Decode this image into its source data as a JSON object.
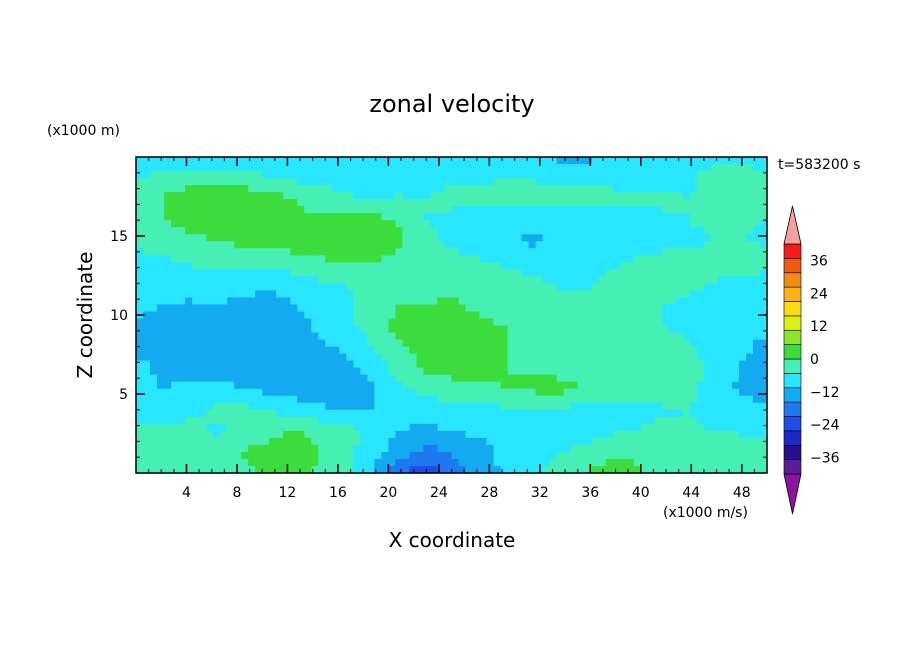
{
  "chart_data": {
    "type": "heatmap",
    "title": "zonal velocity",
    "xlabel": "X coordinate",
    "ylabel": "Z coordinate",
    "y_unit": "(x1000 m)",
    "value_unit": "(x1000 m/s)",
    "timestamp": "t=583200 s",
    "xlim": [
      0,
      50
    ],
    "ylim": [
      0,
      20
    ],
    "x_ticks": [
      "4",
      "8",
      "12",
      "16",
      "20",
      "24",
      "28",
      "32",
      "36",
      "40",
      "44",
      "48"
    ],
    "y_ticks": [
      "5",
      "10",
      "15"
    ],
    "colorbar": {
      "min": -42,
      "max": 42,
      "step": 6,
      "tick_labels": [
        "36",
        "24",
        "12",
        "0",
        "−12",
        "−24",
        "−36"
      ],
      "level_colors": [
        "#5a1e9c",
        "#2a0e8c",
        "#1e28c8",
        "#1e4ee6",
        "#1e78f0",
        "#14aaf0",
        "#28e6ff",
        "#46f0b4",
        "#3cdc3c",
        "#8ce628",
        "#dcf014",
        "#fadc14",
        "#fab414",
        "#f08c14",
        "#f05a14",
        "#f01e14"
      ],
      "extend_low_color": "#8c14a0",
      "extend_high_color": "#f4a0a0"
    },
    "z_rows_top_to_bottom": [
      [
        -3,
        -4,
        -4,
        -3,
        -2,
        -1,
        0,
        -1,
        -2,
        -3,
        -3,
        -2,
        -1,
        -2,
        -3,
        -4,
        -7,
        -9,
        -4,
        -2,
        -1,
        -1,
        -2,
        -3,
        -4
      ],
      [
        -1,
        2,
        3,
        2,
        1,
        0,
        -1,
        -2,
        -3,
        -4,
        -4,
        -3,
        -2,
        -1,
        0,
        0,
        -1,
        -1,
        -2,
        -2,
        -2,
        -1,
        2,
        4,
        3
      ],
      [
        4,
        6,
        10,
        11,
        12,
        9,
        6,
        3,
        1,
        0,
        1,
        0,
        3,
        3,
        2,
        1,
        1,
        2,
        2,
        1,
        1,
        0,
        1,
        2,
        1
      ],
      [
        3,
        6,
        8,
        9,
        10,
        8,
        7,
        7,
        10,
        8,
        5,
        0,
        -3,
        -4,
        -5,
        -3,
        -4,
        -4,
        -3,
        -2,
        -1,
        0,
        1,
        1,
        0
      ],
      [
        1,
        3,
        4,
        6,
        7,
        7,
        8,
        9,
        12,
        11,
        8,
        2,
        -1,
        -3,
        -5,
        -7,
        -6,
        -5,
        -4,
        -3,
        -2,
        -1,
        0,
        0,
        -1
      ],
      [
        -2,
        -1,
        0,
        2,
        3,
        3,
        4,
        5,
        6,
        6,
        3,
        1,
        2,
        1,
        -1,
        -2,
        -3,
        -4,
        -1,
        1,
        2,
        1,
        2,
        4,
        3
      ],
      [
        -4,
        -3,
        -2,
        -3,
        -4,
        -5,
        -4,
        -1,
        0,
        1,
        2,
        3,
        4,
        4,
        3,
        1,
        0,
        -1,
        1,
        2,
        3,
        1,
        0,
        -2,
        -4
      ],
      [
        -5,
        -6,
        -7,
        -6,
        -7,
        -8,
        -6,
        -3,
        -1,
        3,
        6,
        6,
        7,
        5,
        3,
        1,
        0,
        1,
        2,
        1,
        0,
        -1,
        -2,
        -4,
        -5
      ],
      [
        -6,
        -8,
        -9,
        -7,
        -8,
        -9,
        -8,
        -5,
        -2,
        3,
        8,
        9,
        8,
        7,
        6,
        4,
        2,
        1,
        0,
        1,
        0,
        -2,
        -4,
        -6,
        -5
      ],
      [
        -7,
        -6,
        -8,
        -9,
        -12,
        -10,
        -9,
        -7,
        -5,
        0,
        5,
        8,
        8,
        7,
        6,
        4,
        2,
        1,
        0,
        2,
        3,
        1,
        -3,
        -5,
        -7
      ],
      [
        -5,
        -7,
        -9,
        -8,
        -9,
        -10,
        -10,
        -9,
        -8,
        -4,
        3,
        7,
        8,
        7,
        6,
        5,
        4,
        3,
        2,
        5,
        6,
        3,
        -2,
        -6,
        -10
      ],
      [
        -4,
        -6,
        -5,
        -4,
        -6,
        -8,
        -9,
        -9,
        -9,
        -7,
        -1,
        2,
        4,
        5,
        6,
        7,
        8,
        6,
        3,
        4,
        5,
        2,
        -3,
        -7,
        -8
      ],
      [
        -2,
        -4,
        -2,
        1,
        2,
        0,
        -3,
        -5,
        -7,
        -6,
        -4,
        -3,
        -3,
        -2,
        -1,
        0,
        -1,
        -2,
        -3,
        -2,
        -1,
        0,
        -2,
        -4,
        -5
      ],
      [
        1,
        3,
        2,
        -1,
        1,
        4,
        6,
        5,
        3,
        -2,
        -6,
        -7,
        -6,
        -5,
        -4,
        -3,
        -4,
        -3,
        -1,
        0,
        2,
        1,
        0,
        -1,
        -2
      ],
      [
        2,
        4,
        5,
        3,
        6,
        8,
        9,
        6,
        2,
        -4,
        -9,
        -14,
        -12,
        -8,
        -5,
        -3,
        -1,
        2,
        4,
        5,
        3,
        0,
        2,
        5,
        4
      ],
      [
        3,
        5,
        6,
        4,
        5,
        7,
        8,
        5,
        1,
        -5,
        -18,
        -22,
        -15,
        -9,
        -5,
        -1,
        3,
        6,
        8,
        7,
        4,
        1,
        3,
        6,
        5
      ]
    ]
  }
}
